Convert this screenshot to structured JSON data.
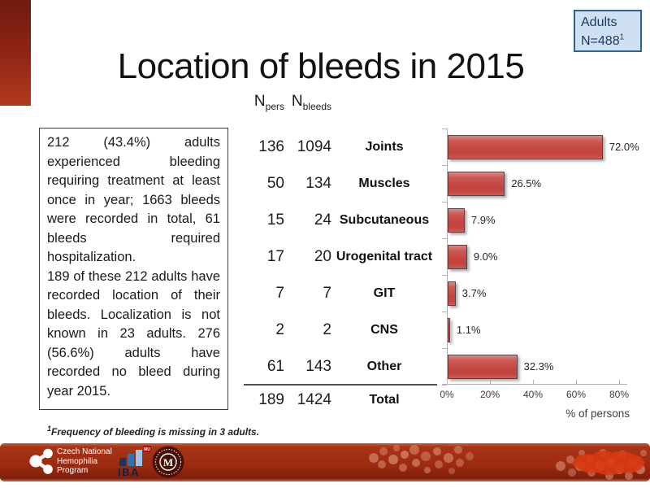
{
  "slide": {
    "title": "Location of bleeds in 2015",
    "badge": {
      "line1": "Adults",
      "n_label": "N=488",
      "n_sup": "1"
    },
    "info_box": {
      "para1": "212 (43.4%) adults experienced bleeding requiring treatment at least once in year; 1663 bleeds were recorded in total, 61 bleeds required hospitalization.",
      "para2": "189 of these 212 adults have recorded location of their bleeds. Localization is not known in 23 adults. 276 (56.6%) adults have recorded no bleed during year 2015."
    },
    "footnote": {
      "sup": "1",
      "text": "Frequency of bleeding is missing in 3 adults."
    }
  },
  "table": {
    "header_pers": {
      "base": "N",
      "sub": "pers"
    },
    "header_bleeds": {
      "base": "N",
      "sub": "bleeds"
    },
    "rows": [
      {
        "npers": "136",
        "nbleeds": "1094",
        "label": "Joints"
      },
      {
        "npers": "50",
        "nbleeds": "134",
        "label": "Muscles"
      },
      {
        "npers": "15",
        "nbleeds": "24",
        "label": "Subcutaneous"
      },
      {
        "npers": "17",
        "nbleeds": "20",
        "label": "Urogenital tract"
      },
      {
        "npers": "7",
        "nbleeds": "7",
        "label": "GIT"
      },
      {
        "npers": "2",
        "nbleeds": "2",
        "label": "CNS"
      },
      {
        "npers": "61",
        "nbleeds": "143",
        "label": "Other"
      }
    ],
    "total": {
      "npers": "189",
      "nbleeds": "1424",
      "label": "Total"
    }
  },
  "chart_data": {
    "type": "bar",
    "orientation": "horizontal",
    "categories": [
      "Joints",
      "Muscles",
      "Subcutaneous",
      "Urogenital tract",
      "GIT",
      "CNS",
      "Other"
    ],
    "values": [
      72.0,
      26.5,
      7.9,
      9.0,
      3.7,
      1.1,
      32.3
    ],
    "labels": [
      "72.0%",
      "26.5%",
      "7.9%",
      "9.0%",
      "3.7%",
      "1.1%",
      "32.3%"
    ],
    "xlabel": "% of persons",
    "xlim": [
      0,
      80
    ],
    "xticks": [
      "0%",
      "20%",
      "40%",
      "60%",
      "80%"
    ],
    "grid": false,
    "legend": null,
    "bar_fill": "#c9524d",
    "bar_border": "#4a4a4a"
  },
  "footer": {
    "cnhp": {
      "line1": "Czech National",
      "line2": "Hemophilia",
      "line3": "Program"
    },
    "iba_label": "IBA",
    "mu_label": "MU",
    "seal_letter": "M"
  },
  "colors": {
    "accent_dark_red": "#8d2314",
    "banner_red": "#9c2a10",
    "badge_bg": "#cfe0f2",
    "badge_border": "#31618f",
    "bar_fill": "#c9524d"
  }
}
